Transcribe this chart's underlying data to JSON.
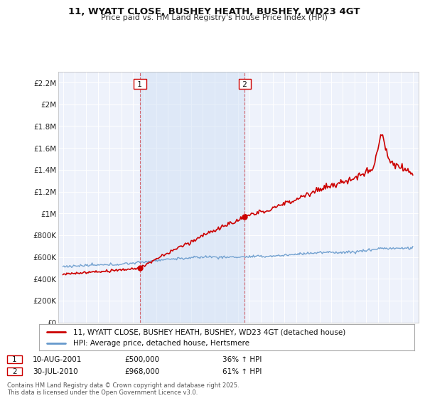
{
  "title": "11, WYATT CLOSE, BUSHEY HEATH, BUSHEY, WD23 4GT",
  "subtitle": "Price paid vs. HM Land Registry's House Price Index (HPI)",
  "ylim": [
    0,
    2300000
  ],
  "yticks": [
    0,
    200000,
    400000,
    600000,
    800000,
    1000000,
    1200000,
    1400000,
    1600000,
    1800000,
    2000000,
    2200000
  ],
  "ytick_labels": [
    "£0",
    "£200K",
    "£400K",
    "£600K",
    "£800K",
    "£1M",
    "£1.2M",
    "£1.4M",
    "£1.6M",
    "£1.8M",
    "£2M",
    "£2.2M"
  ],
  "line1_color": "#cc0000",
  "line2_color": "#6699cc",
  "line1_label": "11, WYATT CLOSE, BUSHEY HEATH, BUSHEY, WD23 4GT (detached house)",
  "line2_label": "HPI: Average price, detached house, Hertsmere",
  "sale1_year": 2001.6,
  "sale1_price": 500000,
  "sale2_year": 2010.58,
  "sale2_price": 968000,
  "sale1_date": "10-AUG-2001",
  "sale1_hpi": "36% ↑ HPI",
  "sale2_date": "30-JUL-2010",
  "sale2_hpi": "61% ↑ HPI",
  "footer": "Contains HM Land Registry data © Crown copyright and database right 2025.\nThis data is licensed under the Open Government Licence v3.0.",
  "background_color": "#ffffff",
  "plot_bg_color": "#eef2fb"
}
